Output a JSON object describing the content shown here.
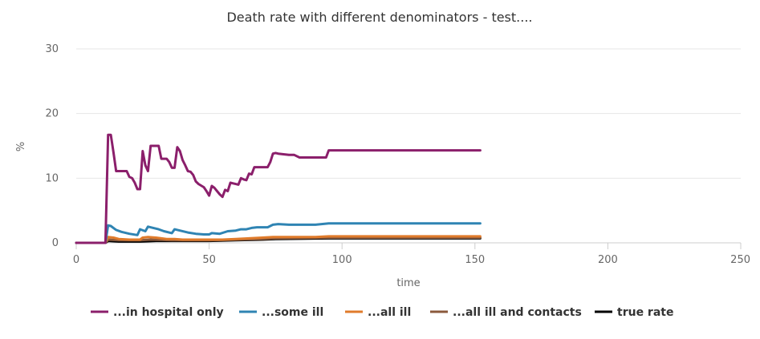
{
  "chart_data": {
    "type": "line",
    "title": "Death rate with different denominators - test....",
    "xlabel": "time",
    "ylabel": "%",
    "xlim": [
      0,
      250
    ],
    "ylim": [
      0,
      30
    ],
    "xticks": [
      "0",
      "50",
      "100",
      "150",
      "200",
      "250"
    ],
    "yticks": [
      "0",
      "10",
      "20",
      "30"
    ],
    "grid": "horizontal",
    "legend_position": "bottom",
    "series": [
      {
        "name": "...in hospital only",
        "color": "#8b1f6b",
        "points": [
          [
            0,
            0
          ],
          [
            11,
            0
          ],
          [
            12,
            16.7
          ],
          [
            13,
            16.7
          ],
          [
            14,
            14
          ],
          [
            15,
            11.1
          ],
          [
            17,
            11.1
          ],
          [
            19,
            11.1
          ],
          [
            20,
            10.2
          ],
          [
            21,
            10
          ],
          [
            22,
            9.3
          ],
          [
            23,
            8.3
          ],
          [
            24,
            8.3
          ],
          [
            25,
            14.2
          ],
          [
            26,
            12
          ],
          [
            27,
            11.1
          ],
          [
            28,
            15
          ],
          [
            30,
            15
          ],
          [
            31,
            15
          ],
          [
            32,
            13
          ],
          [
            34,
            13
          ],
          [
            35,
            12.5
          ],
          [
            36,
            11.6
          ],
          [
            37,
            11.6
          ],
          [
            38,
            14.8
          ],
          [
            39,
            14.2
          ],
          [
            40,
            12.8
          ],
          [
            41,
            12
          ],
          [
            42,
            11.1
          ],
          [
            43,
            11
          ],
          [
            44,
            10.5
          ],
          [
            45,
            9.5
          ],
          [
            46,
            9.1
          ],
          [
            48,
            8.6
          ],
          [
            49,
            8
          ],
          [
            50,
            7.3
          ],
          [
            51,
            8.8
          ],
          [
            52,
            8.5
          ],
          [
            53,
            8
          ],
          [
            54,
            7.5
          ],
          [
            55,
            7.1
          ],
          [
            56,
            8.2
          ],
          [
            57,
            8
          ],
          [
            58,
            9.3
          ],
          [
            59,
            9.2
          ],
          [
            60,
            9.1
          ],
          [
            61,
            9
          ],
          [
            62,
            10
          ],
          [
            63,
            9.8
          ],
          [
            64,
            9.7
          ],
          [
            65,
            10.7
          ],
          [
            66,
            10.6
          ],
          [
            67,
            11.7
          ],
          [
            69,
            11.7
          ],
          [
            70,
            11.7
          ],
          [
            71,
            11.7
          ],
          [
            72,
            11.7
          ],
          [
            73,
            12.5
          ],
          [
            74,
            13.8
          ],
          [
            75,
            13.9
          ],
          [
            76,
            13.8
          ],
          [
            78,
            13.7
          ],
          [
            80,
            13.6
          ],
          [
            82,
            13.6
          ],
          [
            84,
            13.2
          ],
          [
            86,
            13.2
          ],
          [
            88,
            13.2
          ],
          [
            90,
            13.2
          ],
          [
            92,
            13.2
          ],
          [
            94,
            13.2
          ],
          [
            95,
            14.3
          ],
          [
            100,
            14.3
          ],
          [
            110,
            14.3
          ],
          [
            120,
            14.3
          ],
          [
            130,
            14.3
          ],
          [
            140,
            14.3
          ],
          [
            152,
            14.3
          ]
        ]
      },
      {
        "name": "...some ill",
        "color": "#2f84b3",
        "points": [
          [
            0,
            0
          ],
          [
            11,
            0
          ],
          [
            12,
            2.7
          ],
          [
            13,
            2.6
          ],
          [
            15,
            2.0
          ],
          [
            17,
            1.7
          ],
          [
            20,
            1.4
          ],
          [
            23,
            1.2
          ],
          [
            24,
            2.1
          ],
          [
            26,
            1.8
          ],
          [
            27,
            2.5
          ],
          [
            29,
            2.3
          ],
          [
            31,
            2.1
          ],
          [
            33,
            1.8
          ],
          [
            36,
            1.5
          ],
          [
            37,
            2.1
          ],
          [
            39,
            1.9
          ],
          [
            42,
            1.6
          ],
          [
            45,
            1.4
          ],
          [
            48,
            1.3
          ],
          [
            50,
            1.3
          ],
          [
            51,
            1.5
          ],
          [
            54,
            1.4
          ],
          [
            57,
            1.8
          ],
          [
            60,
            1.9
          ],
          [
            62,
            2.1
          ],
          [
            64,
            2.1
          ],
          [
            66,
            2.3
          ],
          [
            68,
            2.4
          ],
          [
            72,
            2.4
          ],
          [
            74,
            2.8
          ],
          [
            76,
            2.9
          ],
          [
            80,
            2.8
          ],
          [
            90,
            2.8
          ],
          [
            95,
            3.0
          ],
          [
            100,
            3.0
          ],
          [
            120,
            3.0
          ],
          [
            140,
            3.0
          ],
          [
            152,
            3.0
          ]
        ]
      },
      {
        "name": "...all ill",
        "color": "#e07b2b",
        "points": [
          [
            0,
            0
          ],
          [
            11,
            0
          ],
          [
            12,
            0.9
          ],
          [
            14,
            0.8
          ],
          [
            16,
            0.6
          ],
          [
            20,
            0.5
          ],
          [
            24,
            0.5
          ],
          [
            25,
            0.8
          ],
          [
            27,
            0.9
          ],
          [
            30,
            0.8
          ],
          [
            34,
            0.6
          ],
          [
            37,
            0.6
          ],
          [
            40,
            0.5
          ],
          [
            45,
            0.5
          ],
          [
            50,
            0.5
          ],
          [
            55,
            0.5
          ],
          [
            60,
            0.6
          ],
          [
            65,
            0.7
          ],
          [
            70,
            0.8
          ],
          [
            74,
            0.9
          ],
          [
            80,
            0.9
          ],
          [
            90,
            0.9
          ],
          [
            95,
            1.0
          ],
          [
            110,
            1.0
          ],
          [
            130,
            1.0
          ],
          [
            152,
            1.0
          ]
        ]
      },
      {
        "name": "...all ill and contacts",
        "color": "#8b5a3c",
        "points": [
          [
            0,
            0
          ],
          [
            11,
            0
          ],
          [
            12,
            0.5
          ],
          [
            16,
            0.4
          ],
          [
            24,
            0.4
          ],
          [
            28,
            0.5
          ],
          [
            36,
            0.4
          ],
          [
            50,
            0.4
          ],
          [
            60,
            0.5
          ],
          [
            70,
            0.6
          ],
          [
            75,
            0.7
          ],
          [
            95,
            0.8
          ],
          [
            120,
            0.8
          ],
          [
            152,
            0.8
          ]
        ]
      },
      {
        "name": "true rate",
        "color": "#000000",
        "points": [
          [
            0,
            0
          ],
          [
            11,
            0
          ],
          [
            12,
            0.3
          ],
          [
            16,
            0.2
          ],
          [
            24,
            0.2
          ],
          [
            30,
            0.3
          ],
          [
            40,
            0.3
          ],
          [
            50,
            0.3
          ],
          [
            60,
            0.4
          ],
          [
            70,
            0.5
          ],
          [
            75,
            0.6
          ],
          [
            95,
            0.7
          ],
          [
            120,
            0.7
          ],
          [
            152,
            0.7
          ]
        ]
      }
    ]
  }
}
